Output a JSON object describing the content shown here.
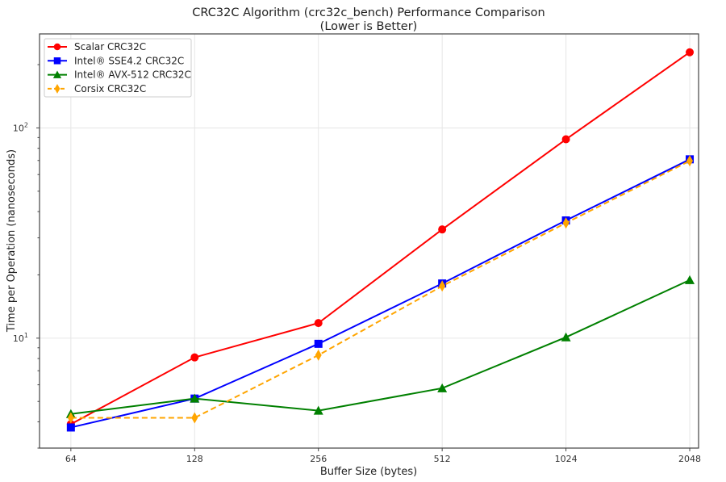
{
  "chart_data": {
    "type": "line",
    "title": "CRC32C Algorithm (crc32c_bench) Performance Comparison",
    "subtitle": "(Lower is Better)",
    "xlabel": "Buffer Size (bytes)",
    "ylabel": "Time per Operation (nanoseconds)",
    "x_scale": "log2",
    "y_scale": "log",
    "x": [
      64,
      128,
      256,
      512,
      1024,
      2048
    ],
    "x_tick_labels": [
      "64",
      "128",
      "256",
      "512",
      "1024",
      "2048"
    ],
    "y_tick_labels": [
      {
        "base": "10",
        "exp": "1",
        "value": 10
      },
      {
        "base": "10",
        "exp": "2",
        "value": 100
      }
    ],
    "xlim": [
      53.7,
      2152
    ],
    "ylim": [
      3.0,
      280
    ],
    "grid": true,
    "legend_position": "top-left",
    "series": [
      {
        "name": "Scalar CRC32C",
        "color": "#ff0000",
        "marker": "circle",
        "dashed": false,
        "values": [
          3.9,
          8.1,
          11.8,
          32.9,
          88.3,
          229
        ]
      },
      {
        "name": "Intel® SSE4.2 CRC32C",
        "color": "#0000ff",
        "marker": "square",
        "dashed": false,
        "values": [
          3.76,
          5.16,
          9.4,
          18.2,
          36.3,
          70.9
        ]
      },
      {
        "name": "Intel® AVX-512 CRC32C",
        "color": "#008000",
        "marker": "triangle",
        "dashed": false,
        "values": [
          4.36,
          5.16,
          4.52,
          5.78,
          10.1,
          18.9
        ]
      },
      {
        "name": "Corsix CRC32C",
        "color": "#ffa500",
        "marker": "diamond",
        "dashed": true,
        "values": [
          4.18,
          4.18,
          8.3,
          17.7,
          35.3,
          69.7
        ]
      }
    ]
  }
}
